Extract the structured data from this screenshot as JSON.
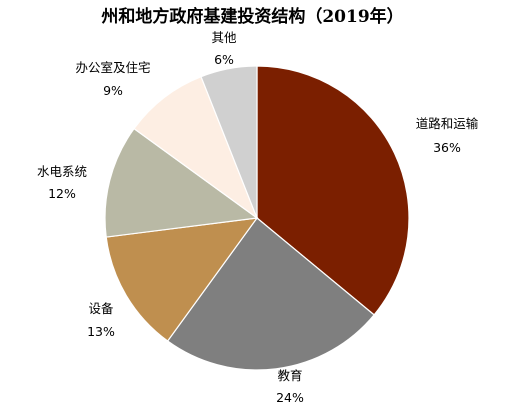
{
  "chart_data": {
    "type": "pie",
    "title": "州和地方政府基建投资结构（2019年）",
    "slices": [
      {
        "label": "道路和运输",
        "value": 36,
        "value_label": "36%",
        "color": "#7b1f00"
      },
      {
        "label": "教育",
        "value": 24,
        "value_label": "24%",
        "color": "#7f7f7f"
      },
      {
        "label": "设备",
        "value": 13,
        "value_label": "13%",
        "color": "#bf8f4f"
      },
      {
        "label": "水电系统",
        "value": 12,
        "value_label": "12%",
        "color": "#b9b9a5"
      },
      {
        "label": "办公室及住宅",
        "value": 9,
        "value_label": "9%",
        "color": "#fdeee3"
      },
      {
        "label": "其他",
        "value": 6,
        "value_label": "6%",
        "color": "#d0d0d0"
      }
    ]
  }
}
